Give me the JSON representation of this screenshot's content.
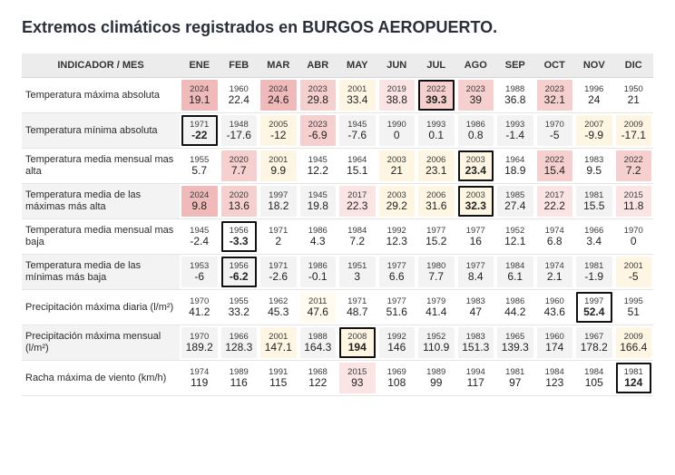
{
  "title": "Extremos climáticos registrados en BURGOS AEROPUERTO.",
  "header_label": "INDICADOR / MES",
  "months": [
    "ENE",
    "FEB",
    "MAR",
    "ABR",
    "MAY",
    "JUN",
    "JUL",
    "AGO",
    "SEP",
    "OCT",
    "NOV",
    "DIC"
  ],
  "colors": {
    "none": "#ffffff",
    "alt": "#f3f3f3",
    "y0": "#fffbef",
    "y1": "#fef6e3",
    "p0": "#fbe4e4",
    "p1": "#f6cfcf",
    "p2": "#f1baba",
    "header_bg": "#ececec",
    "border": "#e5e5e5"
  },
  "rows": [
    {
      "label": "Temperatura máxima absoluta",
      "cells": [
        {
          "year": "2024",
          "value": "19.1",
          "shade": "p2",
          "box": false
        },
        {
          "year": "1960",
          "value": "22.4",
          "shade": "none",
          "box": false
        },
        {
          "year": "2024",
          "value": "24.6",
          "shade": "p2",
          "box": false
        },
        {
          "year": "2023",
          "value": "29.8",
          "shade": "p1",
          "box": false
        },
        {
          "year": "2001",
          "value": "33.4",
          "shade": "y1",
          "box": false
        },
        {
          "year": "2019",
          "value": "38.8",
          "shade": "p0",
          "box": false
        },
        {
          "year": "2022",
          "value": "39.3",
          "shade": "p1",
          "box": true
        },
        {
          "year": "2023",
          "value": "39",
          "shade": "p1",
          "box": false
        },
        {
          "year": "1988",
          "value": "36.8",
          "shade": "none",
          "box": false
        },
        {
          "year": "2023",
          "value": "32.1",
          "shade": "p1",
          "box": false
        },
        {
          "year": "1996",
          "value": "24",
          "shade": "none",
          "box": false
        },
        {
          "year": "1950",
          "value": "21",
          "shade": "none",
          "box": false
        }
      ]
    },
    {
      "label": "Temperatura mínima absoluta",
      "cells": [
        {
          "year": "1971",
          "value": "-22",
          "shade": "alt",
          "box": true
        },
        {
          "year": "1948",
          "value": "-17.6",
          "shade": "alt",
          "box": false
        },
        {
          "year": "2005",
          "value": "-12",
          "shade": "y1",
          "box": false
        },
        {
          "year": "2023",
          "value": "-6.9",
          "shade": "p1",
          "box": false
        },
        {
          "year": "1945",
          "value": "-7.6",
          "shade": "alt",
          "box": false
        },
        {
          "year": "1990",
          "value": "0",
          "shade": "alt",
          "box": false
        },
        {
          "year": "1993",
          "value": "0.1",
          "shade": "alt",
          "box": false
        },
        {
          "year": "1986",
          "value": "0.8",
          "shade": "alt",
          "box": false
        },
        {
          "year": "1993",
          "value": "-1.4",
          "shade": "alt",
          "box": false
        },
        {
          "year": "1970",
          "value": "-5",
          "shade": "alt",
          "box": false
        },
        {
          "year": "2007",
          "value": "-9.9",
          "shade": "y1",
          "box": false
        },
        {
          "year": "2009",
          "value": "-17.1",
          "shade": "y1",
          "box": false
        }
      ]
    },
    {
      "label": "Temperatura media mensual mas alta",
      "cells": [
        {
          "year": "1955",
          "value": "5.7",
          "shade": "none",
          "box": false
        },
        {
          "year": "2020",
          "value": "7.7",
          "shade": "p1",
          "box": false
        },
        {
          "year": "2001",
          "value": "9.9",
          "shade": "y1",
          "box": false
        },
        {
          "year": "1945",
          "value": "12.2",
          "shade": "none",
          "box": false
        },
        {
          "year": "1964",
          "value": "15.1",
          "shade": "none",
          "box": false
        },
        {
          "year": "2003",
          "value": "21",
          "shade": "y1",
          "box": false
        },
        {
          "year": "2006",
          "value": "23.1",
          "shade": "y1",
          "box": false
        },
        {
          "year": "2003",
          "value": "23.4",
          "shade": "y1",
          "box": true
        },
        {
          "year": "1964",
          "value": "18.9",
          "shade": "none",
          "box": false
        },
        {
          "year": "2022",
          "value": "15.4",
          "shade": "p1",
          "box": false
        },
        {
          "year": "1983",
          "value": "9.5",
          "shade": "none",
          "box": false
        },
        {
          "year": "2022",
          "value": "7.2",
          "shade": "p1",
          "box": false
        }
      ]
    },
    {
      "label": "Temperatura media de las máximas más alta",
      "cells": [
        {
          "year": "2024",
          "value": "9.8",
          "shade": "p2",
          "box": false
        },
        {
          "year": "2020",
          "value": "13.6",
          "shade": "p1",
          "box": false
        },
        {
          "year": "1997",
          "value": "18.2",
          "shade": "alt",
          "box": false
        },
        {
          "year": "1945",
          "value": "19.8",
          "shade": "alt",
          "box": false
        },
        {
          "year": "2017",
          "value": "22.3",
          "shade": "p0",
          "box": false
        },
        {
          "year": "2003",
          "value": "29.2",
          "shade": "y1",
          "box": false
        },
        {
          "year": "2006",
          "value": "31.6",
          "shade": "y1",
          "box": false
        },
        {
          "year": "2003",
          "value": "32.3",
          "shade": "y1",
          "box": true
        },
        {
          "year": "1985",
          "value": "27.4",
          "shade": "alt",
          "box": false
        },
        {
          "year": "2017",
          "value": "22.2",
          "shade": "p0",
          "box": false
        },
        {
          "year": "1981",
          "value": "15.5",
          "shade": "alt",
          "box": false
        },
        {
          "year": "2015",
          "value": "11.8",
          "shade": "p0",
          "box": false
        }
      ]
    },
    {
      "label": "Temperatura media mensual mas baja",
      "cells": [
        {
          "year": "1945",
          "value": "-2.4",
          "shade": "none",
          "box": false
        },
        {
          "year": "1956",
          "value": "-3.3",
          "shade": "none",
          "box": true
        },
        {
          "year": "1971",
          "value": "2",
          "shade": "none",
          "box": false
        },
        {
          "year": "1986",
          "value": "4.3",
          "shade": "none",
          "box": false
        },
        {
          "year": "1984",
          "value": "7.2",
          "shade": "none",
          "box": false
        },
        {
          "year": "1992",
          "value": "12.3",
          "shade": "none",
          "box": false
        },
        {
          "year": "1977",
          "value": "15.2",
          "shade": "none",
          "box": false
        },
        {
          "year": "1977",
          "value": "16",
          "shade": "none",
          "box": false
        },
        {
          "year": "1952",
          "value": "12.1",
          "shade": "none",
          "box": false
        },
        {
          "year": "1974",
          "value": "6.8",
          "shade": "none",
          "box": false
        },
        {
          "year": "1966",
          "value": "3.4",
          "shade": "none",
          "box": false
        },
        {
          "year": "1970",
          "value": "0",
          "shade": "none",
          "box": false
        }
      ]
    },
    {
      "label": "Temperatura media de las mínimas más baja",
      "cells": [
        {
          "year": "1953",
          "value": "-6",
          "shade": "alt",
          "box": false
        },
        {
          "year": "1956",
          "value": "-6.2",
          "shade": "alt",
          "box": true
        },
        {
          "year": "1971",
          "value": "-2.6",
          "shade": "alt",
          "box": false
        },
        {
          "year": "1986",
          "value": "-0.1",
          "shade": "alt",
          "box": false
        },
        {
          "year": "1951",
          "value": "3",
          "shade": "alt",
          "box": false
        },
        {
          "year": "1977",
          "value": "6.6",
          "shade": "alt",
          "box": false
        },
        {
          "year": "1980",
          "value": "7.7",
          "shade": "alt",
          "box": false
        },
        {
          "year": "1977",
          "value": "8.4",
          "shade": "alt",
          "box": false
        },
        {
          "year": "1984",
          "value": "6.1",
          "shade": "alt",
          "box": false
        },
        {
          "year": "1974",
          "value": "2.1",
          "shade": "alt",
          "box": false
        },
        {
          "year": "1981",
          "value": "-1.9",
          "shade": "alt",
          "box": false
        },
        {
          "year": "2001",
          "value": "-5",
          "shade": "y1",
          "box": false
        }
      ]
    },
    {
      "label": "Precipitación máxima diaria (l/m²)",
      "cells": [
        {
          "year": "1970",
          "value": "41.2",
          "shade": "none",
          "box": false
        },
        {
          "year": "1955",
          "value": "33.2",
          "shade": "none",
          "box": false
        },
        {
          "year": "1962",
          "value": "45.3",
          "shade": "none",
          "box": false
        },
        {
          "year": "2011",
          "value": "47.6",
          "shade": "y0",
          "box": false
        },
        {
          "year": "1971",
          "value": "48.7",
          "shade": "none",
          "box": false
        },
        {
          "year": "1977",
          "value": "51.6",
          "shade": "none",
          "box": false
        },
        {
          "year": "1979",
          "value": "41.4",
          "shade": "none",
          "box": false
        },
        {
          "year": "1983",
          "value": "47",
          "shade": "none",
          "box": false
        },
        {
          "year": "1986",
          "value": "44.2",
          "shade": "none",
          "box": false
        },
        {
          "year": "1960",
          "value": "43.6",
          "shade": "none",
          "box": false
        },
        {
          "year": "1997",
          "value": "52.4",
          "shade": "none",
          "box": true
        },
        {
          "year": "1995",
          "value": "51",
          "shade": "none",
          "box": false
        }
      ]
    },
    {
      "label": "Precipitación máxima mensual (l/m²)",
      "cells": [
        {
          "year": "1970",
          "value": "189.2",
          "shade": "alt",
          "box": false
        },
        {
          "year": "1966",
          "value": "128.3",
          "shade": "alt",
          "box": false
        },
        {
          "year": "2001",
          "value": "147.1",
          "shade": "y1",
          "box": false
        },
        {
          "year": "1988",
          "value": "164.3",
          "shade": "alt",
          "box": false
        },
        {
          "year": "2008",
          "value": "194",
          "shade": "y1",
          "box": true
        },
        {
          "year": "1992",
          "value": "146",
          "shade": "alt",
          "box": false
        },
        {
          "year": "1952",
          "value": "110.9",
          "shade": "alt",
          "box": false
        },
        {
          "year": "1983",
          "value": "151.3",
          "shade": "alt",
          "box": false
        },
        {
          "year": "1965",
          "value": "139.3",
          "shade": "alt",
          "box": false
        },
        {
          "year": "1960",
          "value": "174",
          "shade": "alt",
          "box": false
        },
        {
          "year": "1967",
          "value": "178.2",
          "shade": "alt",
          "box": false
        },
        {
          "year": "2009",
          "value": "166.4",
          "shade": "y1",
          "box": false
        }
      ]
    },
    {
      "label": "Racha máxima de viento (km/h)",
      "cells": [
        {
          "year": "1974",
          "value": "119",
          "shade": "none",
          "box": false
        },
        {
          "year": "1989",
          "value": "116",
          "shade": "none",
          "box": false
        },
        {
          "year": "1991",
          "value": "115",
          "shade": "none",
          "box": false
        },
        {
          "year": "1968",
          "value": "122",
          "shade": "none",
          "box": false
        },
        {
          "year": "2015",
          "value": "93",
          "shade": "p0",
          "box": false
        },
        {
          "year": "1969",
          "value": "108",
          "shade": "none",
          "box": false
        },
        {
          "year": "1989",
          "value": "99",
          "shade": "none",
          "box": false
        },
        {
          "year": "1994",
          "value": "117",
          "shade": "none",
          "box": false
        },
        {
          "year": "1981",
          "value": "97",
          "shade": "none",
          "box": false
        },
        {
          "year": "1984",
          "value": "123",
          "shade": "none",
          "box": false
        },
        {
          "year": "1984",
          "value": "105",
          "shade": "none",
          "box": false
        },
        {
          "year": "1981",
          "value": "124",
          "shade": "none",
          "box": true
        }
      ]
    }
  ]
}
